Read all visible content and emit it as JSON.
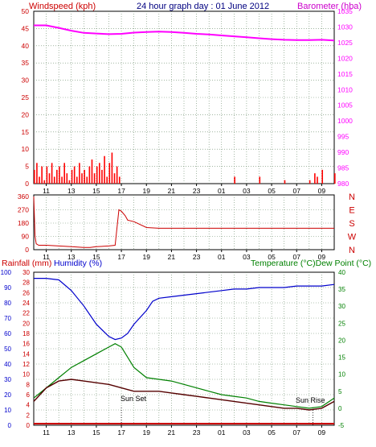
{
  "header": {
    "left_label": "Windspeed (kph)",
    "title": "24 hour graph day : 01 June 2012",
    "right_label": "Barometer (hba)"
  },
  "colors": {
    "wind": "#ff0000",
    "baro": "#ff00ff",
    "direction": "#cc0000",
    "humidity": "#0000cc",
    "temperature": "#008000",
    "dewpoint": "#550000",
    "rain": "#cc0000",
    "axis_left": "#cc0000",
    "axis_blue": "#0000cc",
    "axis_right_bottom": "#008000"
  },
  "chart_data": [
    {
      "type": "line",
      "title": "24 hour graph day : 01 June 2012",
      "ylabel": "Windspeed (kph)",
      "y2label": "Barometer (hba)",
      "ylim": [
        0,
        50
      ],
      "y2lim": [
        980,
        1035
      ],
      "yticks": [
        0,
        5,
        10,
        15,
        20,
        25,
        30,
        35,
        40,
        45,
        50
      ],
      "y2ticks": [
        980,
        985,
        990,
        995,
        1000,
        1005,
        1010,
        1015,
        1020,
        1025,
        1030,
        1035
      ],
      "xticks": [
        "11",
        "13",
        "15",
        "17",
        "19",
        "21",
        "23",
        "01",
        "03",
        "05",
        "07",
        "09"
      ],
      "grid": true,
      "series": [
        {
          "name": "Barometer (hba)",
          "axis": "right",
          "x": [
            0,
            1,
            2,
            3,
            4,
            5,
            6,
            7,
            8,
            9,
            10,
            11,
            12,
            13,
            14,
            15,
            16,
            17,
            18,
            19,
            20,
            21,
            22,
            23,
            24
          ],
          "values": [
            1030.5,
            1030.5,
            1029.7,
            1028.8,
            1028.1,
            1027.9,
            1027.7,
            1027.8,
            1028.2,
            1028.4,
            1028.5,
            1028.4,
            1028.1,
            1027.8,
            1027.6,
            1027.3,
            1027.0,
            1026.7,
            1026.4,
            1026.1,
            1025.9,
            1025.8,
            1025.8,
            1025.9,
            1025.7
          ]
        },
        {
          "name": "Windspeed (kph)",
          "axis": "left",
          "x": [
            0,
            0.2,
            0.4,
            0.6,
            0.8,
            1,
            1.2,
            1.4,
            1.6,
            1.8,
            2,
            2.2,
            2.4,
            2.6,
            2.8,
            3,
            3.2,
            3.4,
            3.6,
            3.8,
            4,
            4.2,
            4.4,
            4.6,
            4.8,
            5,
            5.2,
            5.4,
            5.6,
            5.8,
            6,
            6.2,
            6.4,
            6.6,
            6.8,
            7,
            9,
            13,
            16,
            18,
            19,
            20,
            22,
            22.4,
            22.6,
            23,
            24
          ],
          "values": [
            4,
            6,
            2,
            5,
            1,
            5,
            3,
            6,
            2,
            4,
            5,
            2,
            6,
            3,
            1,
            4,
            5,
            2,
            6,
            3,
            4,
            2,
            5,
            7,
            3,
            5,
            6,
            4,
            8,
            2,
            6,
            9,
            3,
            5,
            2,
            0,
            0,
            0,
            2,
            2,
            0,
            1,
            1,
            3,
            2,
            4,
            3
          ]
        }
      ]
    },
    {
      "type": "line",
      "ylabel": "",
      "ylim": [
        0,
        360
      ],
      "yticks": [
        0,
        90,
        180,
        270,
        360
      ],
      "direction_labels": [
        "N",
        "W",
        "S",
        "E",
        "N"
      ],
      "xticks": [
        "11",
        "13",
        "15",
        "17",
        "19",
        "21",
        "23",
        "01",
        "03",
        "05",
        "07",
        "09"
      ],
      "grid": true,
      "series": [
        {
          "name": "Wind direction",
          "x": [
            0,
            0.1,
            0.2,
            0.4,
            1,
            2,
            3,
            4,
            4.5,
            5,
            6,
            6.5,
            6.8,
            7,
            7.3,
            7.5,
            8,
            9,
            10,
            12,
            16,
            20,
            24
          ],
          "values": [
            360,
            90,
            40,
            30,
            30,
            25,
            20,
            15,
            15,
            20,
            25,
            30,
            270,
            260,
            230,
            200,
            190,
            150,
            145,
            145,
            145,
            145,
            145
          ]
        }
      ]
    },
    {
      "type": "line",
      "left_label": "Rainfall (mm)",
      "humidity_label": "Humidity (%)",
      "right_label": "Temperature (°C)Dew Point (°C)",
      "sunset_label": "Sun Set",
      "sunrise_label": "Sun Rise",
      "sunset_x": 7,
      "sunrise_x": 22.3,
      "rain_ylim": [
        0,
        30
      ],
      "rain_ticks": [
        0,
        2,
        4,
        6,
        8,
        10,
        12,
        14,
        16,
        18,
        20,
        22,
        24,
        26,
        28,
        30
      ],
      "humidity_ylim": [
        0,
        100
      ],
      "humidity_ticks": [
        0,
        10,
        20,
        30,
        40,
        50,
        60,
        70,
        80,
        90,
        100
      ],
      "temp_ylim": [
        -5,
        40
      ],
      "temp_ticks": [
        -5,
        0,
        5,
        10,
        15,
        20,
        25,
        30,
        35,
        40
      ],
      "xticks": [
        "11",
        "13",
        "15",
        "17",
        "19",
        "21",
        "23",
        "01",
        "03",
        "05",
        "07",
        "09"
      ],
      "grid": true,
      "series": [
        {
          "name": "Humidity (%)",
          "axis": "humidity",
          "x": [
            0,
            1,
            2,
            3,
            4,
            5,
            6,
            6.5,
            7,
            7.5,
            8,
            9,
            9.5,
            10,
            11,
            12,
            13,
            14,
            15,
            16,
            17,
            18,
            19,
            20,
            21,
            22,
            23,
            24
          ],
          "values": [
            96,
            96,
            95,
            88,
            78,
            66,
            58,
            56,
            57,
            60,
            66,
            75,
            81,
            83,
            84,
            85,
            86,
            87,
            88,
            89,
            89,
            90,
            90,
            90,
            91,
            91,
            91,
            92
          ]
        },
        {
          "name": "Temperature (°C)",
          "axis": "temp",
          "x": [
            0,
            1,
            2,
            3,
            4,
            5,
            6,
            6.5,
            7,
            7.5,
            8,
            9,
            10,
            11,
            12,
            13,
            14,
            15,
            16,
            17,
            18,
            19,
            20,
            21,
            22,
            23,
            24
          ],
          "values": [
            3,
            6,
            9,
            12,
            14,
            16,
            18,
            19,
            18,
            15,
            12,
            9,
            8.5,
            8,
            7,
            6,
            5,
            4,
            3.5,
            3,
            2,
            1.5,
            1,
            0.5,
            0,
            0.5,
            3
          ]
        },
        {
          "name": "Dew Point (°C)",
          "axis": "temp",
          "x": [
            0,
            1,
            2,
            3,
            4,
            5,
            6,
            7,
            8,
            9,
            10,
            11,
            12,
            13,
            14,
            15,
            16,
            17,
            18,
            19,
            20,
            21,
            22,
            23,
            24
          ],
          "values": [
            2,
            6,
            8,
            8.5,
            8,
            7.5,
            7,
            6,
            5,
            5,
            5,
            4.5,
            4,
            3.5,
            3,
            2.5,
            2,
            1.5,
            1,
            0.5,
            0,
            0,
            -0.5,
            0,
            2
          ]
        },
        {
          "name": "Rainfall (mm)",
          "axis": "rain",
          "x": [
            0,
            24
          ],
          "values": [
            0,
            0
          ]
        }
      ]
    }
  ]
}
